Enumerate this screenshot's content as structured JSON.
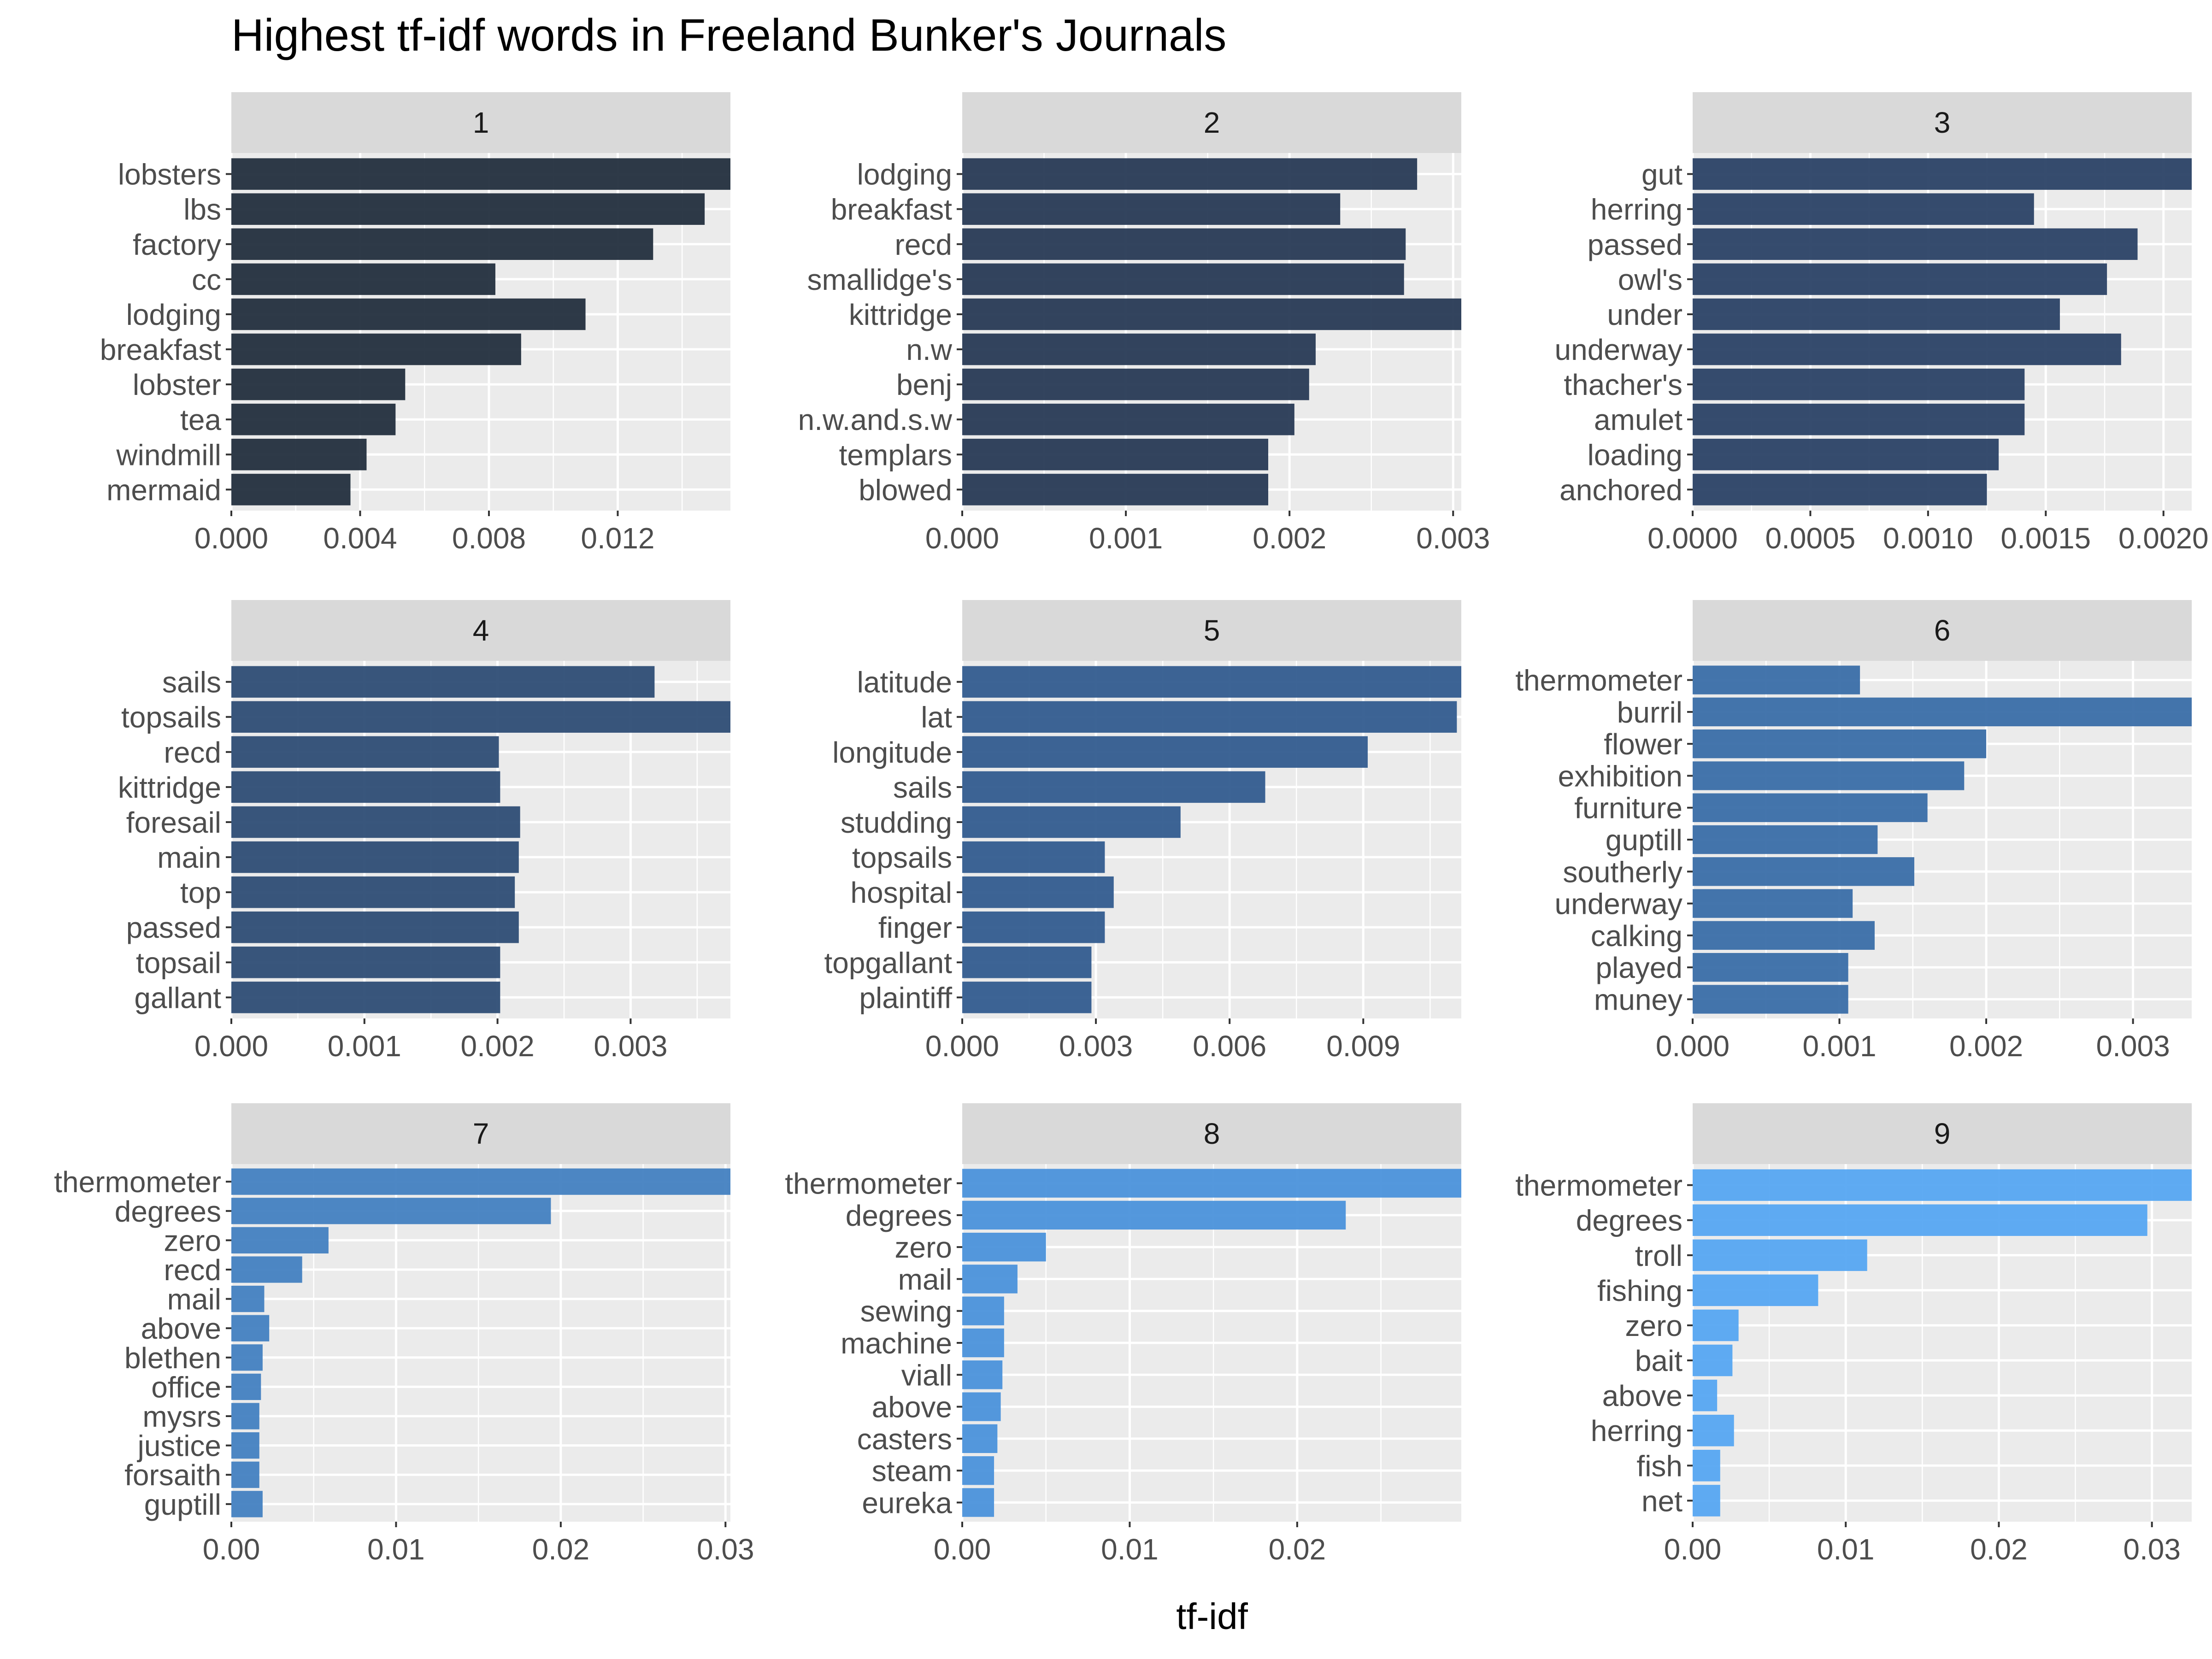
{
  "chart_data": {
    "type": "bar",
    "title": "Highest tf-idf words in Freeland Bunker's Journals",
    "xlabel": "tf-idf",
    "ylabel": "",
    "facets": [
      {
        "label": "1",
        "xlim": [
          0,
          0.0155
        ],
        "ticks": [
          "0.000",
          "0.004",
          "0.008",
          "0.012"
        ],
        "tick_values": [
          0,
          0.004,
          0.008,
          0.012
        ],
        "color": "#232f3e",
        "words": [
          "lobsters",
          "lbs",
          "factory",
          "cc",
          "lodging",
          "breakfast",
          "lobster",
          "tea",
          "windmill",
          "mermaid"
        ],
        "values": [
          0.0155,
          0.0147,
          0.0131,
          0.0082,
          0.011,
          0.009,
          0.0054,
          0.0051,
          0.0042,
          0.0037
        ]
      },
      {
        "label": "2",
        "xlim": [
          0,
          0.00305
        ],
        "ticks": [
          "0.000",
          "0.001",
          "0.002",
          "0.003"
        ],
        "tick_values": [
          0,
          0.001,
          0.002,
          0.003
        ],
        "color": "#283a55",
        "words": [
          "lodging",
          "breakfast",
          "recd",
          "smallidge's",
          "kittridge",
          "n.w",
          "benj",
          "n.w.and.s.w",
          "templars",
          "blowed"
        ],
        "values": [
          0.00278,
          0.00231,
          0.00271,
          0.0027,
          0.00305,
          0.00216,
          0.00212,
          0.00203,
          0.00187,
          0.00187
        ]
      },
      {
        "label": "3",
        "xlim": [
          0,
          0.00212
        ],
        "ticks": [
          "0.0000",
          "0.0005",
          "0.0010",
          "0.0015",
          "0.0020"
        ],
        "tick_values": [
          0,
          0.0005,
          0.001,
          0.0015,
          0.002
        ],
        "color": "#2b4266",
        "words": [
          "gut",
          "herring",
          "passed",
          "owl's",
          "under",
          "underway",
          "thacher's",
          "amulet",
          "loading",
          "anchored"
        ],
        "values": [
          0.00212,
          0.00145,
          0.00189,
          0.00176,
          0.00156,
          0.00182,
          0.00141,
          0.00141,
          0.0013,
          0.00125
        ]
      },
      {
        "label": "4",
        "xlim": [
          0,
          0.00375
        ],
        "ticks": [
          "0.000",
          "0.001",
          "0.002",
          "0.003"
        ],
        "tick_values": [
          0,
          0.001,
          0.002,
          0.003
        ],
        "color": "#2e4d75",
        "words": [
          "sails",
          "topsails",
          "recd",
          "kittridge",
          "foresail",
          "main",
          "top",
          "passed",
          "topsail",
          "gallant"
        ],
        "values": [
          0.00318,
          0.00375,
          0.00201,
          0.00202,
          0.00217,
          0.00216,
          0.00213,
          0.00216,
          0.00202,
          0.00202
        ]
      },
      {
        "label": "5",
        "xlim": [
          0,
          0.0112
        ],
        "ticks": [
          "0.000",
          "0.003",
          "0.006",
          "0.009"
        ],
        "tick_values": [
          0,
          0.003,
          0.006,
          0.009
        ],
        "color": "#335c8f",
        "words": [
          "latitude",
          "lat",
          "longitude",
          "sails",
          "studding",
          "topsails",
          "hospital",
          "finger",
          "topgallant",
          "plaintiff"
        ],
        "values": [
          0.0112,
          0.0111,
          0.0091,
          0.0068,
          0.0049,
          0.0032,
          0.0034,
          0.0032,
          0.0029,
          0.0029
        ]
      },
      {
        "label": "6",
        "xlim": [
          0,
          0.0034
        ],
        "ticks": [
          "0.000",
          "0.001",
          "0.002",
          "0.003"
        ],
        "tick_values": [
          0,
          0.001,
          0.002,
          0.003
        ],
        "color": "#3a6ea8",
        "words": [
          "thermometer",
          "burril",
          "flower",
          "exhibition",
          "furniture",
          "guptill",
          "southerly",
          "underway",
          "calking",
          "played",
          "muney"
        ],
        "values": [
          0.00114,
          0.0034,
          0.002,
          0.00185,
          0.0016,
          0.00126,
          0.00151,
          0.00109,
          0.00124,
          0.00106,
          0.00106
        ]
      },
      {
        "label": "7",
        "xlim": [
          0,
          0.0303
        ],
        "ticks": [
          "0.00",
          "0.01",
          "0.02",
          "0.03"
        ],
        "tick_values": [
          0,
          0.01,
          0.02,
          0.03
        ],
        "color": "#4381c1",
        "words": [
          "thermometer",
          "degrees",
          "zero",
          "recd",
          "mail",
          "above",
          "blethen",
          "office",
          "mysrs",
          "justice",
          "forsaith",
          "guptill"
        ],
        "values": [
          0.0303,
          0.0194,
          0.0059,
          0.0043,
          0.002,
          0.0023,
          0.0019,
          0.0018,
          0.0017,
          0.0017,
          0.0017,
          0.0019
        ]
      },
      {
        "label": "8",
        "xlim": [
          0,
          0.0298
        ],
        "ticks": [
          "0.00",
          "0.01",
          "0.02"
        ],
        "tick_values": [
          0,
          0.01,
          0.02
        ],
        "color": "#4b92db",
        "words": [
          "thermometer",
          "degrees",
          "zero",
          "mail",
          "sewing",
          "machine",
          "viall",
          "above",
          "casters",
          "steam",
          "eureka"
        ],
        "values": [
          0.0298,
          0.0229,
          0.005,
          0.0033,
          0.0025,
          0.0025,
          0.0024,
          0.0023,
          0.0021,
          0.0019,
          0.0019
        ]
      },
      {
        "label": "9",
        "xlim": [
          0,
          0.0326
        ],
        "ticks": [
          "0.00",
          "0.01",
          "0.02",
          "0.03"
        ],
        "tick_values": [
          0,
          0.01,
          0.02,
          0.03
        ],
        "color": "#56a7f2",
        "words": [
          "thermometer",
          "degrees",
          "troll",
          "fishing",
          "zero",
          "bait",
          "above",
          "herring",
          "fish",
          "net"
        ],
        "values": [
          0.0326,
          0.0297,
          0.0114,
          0.0082,
          0.003,
          0.0026,
          0.0016,
          0.0027,
          0.0018,
          0.0018
        ]
      }
    ]
  }
}
